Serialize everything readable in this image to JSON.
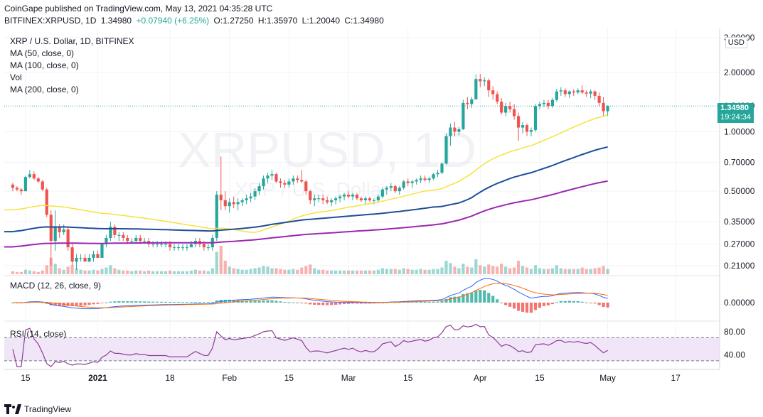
{
  "header": {
    "line1": "CoinGape published on TradingView.com, May 13, 2021 04:35:28 UTC",
    "symbol": "BITFINEX:XRPUSD, 1D",
    "price": "1.34980",
    "change": "+0.07940 (+6.25%)",
    "open": "O:1.27250",
    "high": "H:1.35970",
    "low": "L:1.20040",
    "close": "C:1.34980"
  },
  "legend": {
    "title": "XRP / U.S. Dollar, 1D, BITFINEX",
    "ma50": "MA (50, close, 0)",
    "ma100": "MA (100, close, 0)",
    "vol": "Vol",
    "ma200": "MA (200, close, 0)",
    "macd": "MACD (12, 26, close, 9)",
    "rsi": "RSI (14, close)"
  },
  "watermark": {
    "symbol": "XRPUSD, 1D",
    "name": "XRP / U.S. Dollar"
  },
  "currency_badge": "USD",
  "price_tag": {
    "price": "1.34980",
    "countdown": "19:24:34"
  },
  "footer": {
    "brand": "TradingView"
  },
  "colors": {
    "up": "#26a69a",
    "down": "#ef5350",
    "ma50": "#f5e33b",
    "ma100": "#1f4e99",
    "ma200": "#9c27b0",
    "rsi": "#8e3c96",
    "rsi_band": "#e9dcf5",
    "macd": "#2962ff",
    "signal": "#ff6d00"
  },
  "chart_data": [
    {
      "type": "candlestick",
      "title": "XRP / U.S. Dollar, 1D, BITFINEX",
      "scale": "log",
      "y_ticks": [
        "3.00000",
        "2.00000",
        "1.34980",
        "1.00000",
        "0.70000",
        "0.50000",
        "0.35000",
        "0.27000",
        "0.21000"
      ],
      "x_ticks": [
        "15",
        "2021",
        "18",
        "Feb",
        "15",
        "Mar",
        "15",
        "Apr",
        "15",
        "May",
        "17"
      ],
      "x_range": [
        "2020-12-10",
        "2021-05-25"
      ],
      "ylim": [
        0.19,
        3.2
      ],
      "grid": true,
      "last_price": 1.3498,
      "ohlc_start": "2020-12-12",
      "ohlc": [
        [
          0.54,
          0.55,
          0.5,
          0.52
        ],
        [
          0.52,
          0.53,
          0.5,
          0.51
        ],
        [
          0.51,
          0.52,
          0.48,
          0.5
        ],
        [
          0.5,
          0.6,
          0.5,
          0.59
        ],
        [
          0.59,
          0.64,
          0.58,
          0.61
        ],
        [
          0.61,
          0.63,
          0.57,
          0.58
        ],
        [
          0.58,
          0.59,
          0.55,
          0.56
        ],
        [
          0.56,
          0.57,
          0.5,
          0.51
        ],
        [
          0.51,
          0.52,
          0.37,
          0.38
        ],
        [
          0.38,
          0.4,
          0.21,
          0.28
        ],
        [
          0.28,
          0.4,
          0.25,
          0.33
        ],
        [
          0.33,
          0.34,
          0.29,
          0.31
        ],
        [
          0.31,
          0.34,
          0.3,
          0.32
        ],
        [
          0.32,
          0.33,
          0.25,
          0.26
        ],
        [
          0.26,
          0.27,
          0.21,
          0.22
        ],
        [
          0.22,
          0.24,
          0.2,
          0.23
        ],
        [
          0.23,
          0.24,
          0.22,
          0.23
        ],
        [
          0.23,
          0.24,
          0.22,
          0.22
        ],
        [
          0.22,
          0.24,
          0.22,
          0.23
        ],
        [
          0.23,
          0.25,
          0.22,
          0.24
        ],
        [
          0.24,
          0.25,
          0.23,
          0.23
        ],
        [
          0.23,
          0.27,
          0.23,
          0.27
        ],
        [
          0.27,
          0.3,
          0.26,
          0.29
        ],
        [
          0.29,
          0.35,
          0.28,
          0.33
        ],
        [
          0.33,
          0.34,
          0.29,
          0.3
        ],
        [
          0.3,
          0.31,
          0.28,
          0.3
        ],
        [
          0.3,
          0.31,
          0.28,
          0.29
        ],
        [
          0.29,
          0.3,
          0.27,
          0.28
        ],
        [
          0.28,
          0.29,
          0.27,
          0.28
        ],
        [
          0.28,
          0.3,
          0.27,
          0.29
        ],
        [
          0.29,
          0.3,
          0.27,
          0.28
        ],
        [
          0.28,
          0.29,
          0.27,
          0.28
        ],
        [
          0.28,
          0.29,
          0.26,
          0.27
        ],
        [
          0.27,
          0.28,
          0.26,
          0.27
        ],
        [
          0.27,
          0.28,
          0.26,
          0.27
        ],
        [
          0.27,
          0.28,
          0.26,
          0.27
        ],
        [
          0.27,
          0.28,
          0.26,
          0.27
        ],
        [
          0.27,
          0.28,
          0.25,
          0.26
        ],
        [
          0.26,
          0.27,
          0.25,
          0.26
        ],
        [
          0.26,
          0.27,
          0.25,
          0.26
        ],
        [
          0.26,
          0.27,
          0.25,
          0.26
        ],
        [
          0.26,
          0.27,
          0.25,
          0.26
        ],
        [
          0.26,
          0.28,
          0.26,
          0.27
        ],
        [
          0.27,
          0.29,
          0.26,
          0.28
        ],
        [
          0.28,
          0.29,
          0.26,
          0.27
        ],
        [
          0.27,
          0.28,
          0.25,
          0.26
        ],
        [
          0.26,
          0.27,
          0.25,
          0.26
        ],
        [
          0.26,
          0.3,
          0.25,
          0.29
        ],
        [
          0.29,
          0.5,
          0.28,
          0.48
        ],
        [
          0.48,
          0.75,
          0.4,
          0.45
        ],
        [
          0.45,
          0.5,
          0.4,
          0.42
        ],
        [
          0.42,
          0.46,
          0.39,
          0.44
        ],
        [
          0.44,
          0.47,
          0.41,
          0.43
        ],
        [
          0.43,
          0.46,
          0.4,
          0.44
        ],
        [
          0.44,
          0.46,
          0.42,
          0.45
        ],
        [
          0.45,
          0.48,
          0.43,
          0.46
        ],
        [
          0.46,
          0.49,
          0.44,
          0.47
        ],
        [
          0.47,
          0.52,
          0.45,
          0.5
        ],
        [
          0.5,
          0.55,
          0.48,
          0.53
        ],
        [
          0.53,
          0.6,
          0.51,
          0.58
        ],
        [
          0.58,
          0.62,
          0.55,
          0.6
        ],
        [
          0.6,
          0.64,
          0.57,
          0.61
        ],
        [
          0.61,
          0.62,
          0.55,
          0.56
        ],
        [
          0.56,
          0.58,
          0.52,
          0.55
        ],
        [
          0.55,
          0.57,
          0.52,
          0.54
        ],
        [
          0.54,
          0.58,
          0.52,
          0.56
        ],
        [
          0.56,
          0.6,
          0.54,
          0.58
        ],
        [
          0.58,
          0.6,
          0.55,
          0.57
        ],
        [
          0.57,
          0.64,
          0.55,
          0.56
        ],
        [
          0.56,
          0.57,
          0.48,
          0.5
        ],
        [
          0.5,
          0.51,
          0.43,
          0.45
        ],
        [
          0.45,
          0.48,
          0.42,
          0.46
        ],
        [
          0.46,
          0.48,
          0.44,
          0.46
        ],
        [
          0.46,
          0.48,
          0.43,
          0.45
        ],
        [
          0.45,
          0.47,
          0.43,
          0.44
        ],
        [
          0.44,
          0.46,
          0.42,
          0.45
        ],
        [
          0.45,
          0.47,
          0.43,
          0.46
        ],
        [
          0.46,
          0.48,
          0.44,
          0.47
        ],
        [
          0.47,
          0.49,
          0.45,
          0.48
        ],
        [
          0.48,
          0.5,
          0.46,
          0.47
        ],
        [
          0.47,
          0.49,
          0.45,
          0.48
        ],
        [
          0.48,
          0.49,
          0.45,
          0.46
        ],
        [
          0.46,
          0.47,
          0.44,
          0.45
        ],
        [
          0.45,
          0.47,
          0.43,
          0.46
        ],
        [
          0.46,
          0.47,
          0.44,
          0.45
        ],
        [
          0.45,
          0.46,
          0.43,
          0.45
        ],
        [
          0.45,
          0.48,
          0.44,
          0.47
        ],
        [
          0.47,
          0.52,
          0.46,
          0.51
        ],
        [
          0.51,
          0.53,
          0.48,
          0.52
        ],
        [
          0.52,
          0.55,
          0.5,
          0.53
        ],
        [
          0.53,
          0.54,
          0.49,
          0.5
        ],
        [
          0.5,
          0.53,
          0.48,
          0.52
        ],
        [
          0.52,
          0.57,
          0.51,
          0.56
        ],
        [
          0.56,
          0.58,
          0.53,
          0.55
        ],
        [
          0.55,
          0.57,
          0.52,
          0.56
        ],
        [
          0.56,
          0.58,
          0.54,
          0.57
        ],
        [
          0.57,
          0.6,
          0.55,
          0.58
        ],
        [
          0.58,
          0.6,
          0.56,
          0.57
        ],
        [
          0.57,
          0.59,
          0.55,
          0.58
        ],
        [
          0.58,
          0.62,
          0.57,
          0.61
        ],
        [
          0.61,
          0.64,
          0.59,
          0.62
        ],
        [
          0.62,
          0.7,
          0.61,
          0.69
        ],
        [
          0.69,
          0.98,
          0.68,
          0.95
        ],
        [
          0.95,
          1.1,
          0.85,
          1.05
        ],
        [
          1.05,
          1.12,
          0.95,
          1.0
        ],
        [
          1.0,
          1.06,
          0.96,
          1.03
        ],
        [
          1.03,
          1.45,
          1.02,
          1.4
        ],
        [
          1.4,
          1.5,
          1.3,
          1.38
        ],
        [
          1.38,
          1.5,
          1.32,
          1.46
        ],
        [
          1.46,
          1.95,
          1.45,
          1.85
        ],
        [
          1.85,
          1.96,
          1.68,
          1.8
        ],
        [
          1.8,
          1.88,
          1.7,
          1.82
        ],
        [
          1.82,
          1.86,
          1.5,
          1.62
        ],
        [
          1.62,
          1.7,
          1.45,
          1.55
        ],
        [
          1.55,
          1.6,
          1.38,
          1.42
        ],
        [
          1.42,
          1.48,
          1.22,
          1.25
        ],
        [
          1.25,
          1.4,
          1.2,
          1.35
        ],
        [
          1.35,
          1.42,
          1.25,
          1.3
        ],
        [
          1.3,
          1.38,
          1.15,
          1.2
        ],
        [
          1.2,
          1.25,
          0.9,
          1.05
        ],
        [
          1.05,
          1.12,
          0.98,
          1.08
        ],
        [
          1.08,
          1.1,
          0.95,
          1.0
        ],
        [
          1.0,
          1.05,
          0.95,
          1.02
        ],
        [
          1.02,
          1.38,
          1.0,
          1.35
        ],
        [
          1.35,
          1.42,
          1.3,
          1.38
        ],
        [
          1.38,
          1.45,
          1.33,
          1.4
        ],
        [
          1.4,
          1.45,
          1.3,
          1.35
        ],
        [
          1.35,
          1.48,
          1.32,
          1.45
        ],
        [
          1.45,
          1.65,
          1.42,
          1.6
        ],
        [
          1.6,
          1.68,
          1.52,
          1.62
        ],
        [
          1.62,
          1.66,
          1.5,
          1.55
        ],
        [
          1.55,
          1.62,
          1.48,
          1.6
        ],
        [
          1.6,
          1.64,
          1.52,
          1.58
        ],
        [
          1.58,
          1.66,
          1.55,
          1.62
        ],
        [
          1.62,
          1.72,
          1.55,
          1.58
        ],
        [
          1.58,
          1.62,
          1.5,
          1.56
        ],
        [
          1.56,
          1.64,
          1.48,
          1.6
        ],
        [
          1.6,
          1.62,
          1.45,
          1.52
        ],
        [
          1.52,
          1.58,
          1.35,
          1.4
        ],
        [
          1.4,
          1.5,
          1.2,
          1.27
        ],
        [
          1.27,
          1.36,
          1.2,
          1.35
        ]
      ],
      "volume": [
        4,
        3,
        3,
        6,
        5,
        4,
        3,
        5,
        12,
        22,
        14,
        8,
        6,
        10,
        12,
        8,
        6,
        5,
        5,
        6,
        5,
        7,
        9,
        12,
        8,
        6,
        5,
        5,
        4,
        5,
        5,
        4,
        5,
        4,
        4,
        4,
        4,
        5,
        4,
        4,
        4,
        4,
        5,
        6,
        5,
        5,
        4,
        8,
        30,
        38,
        18,
        10,
        8,
        7,
        6,
        6,
        7,
        8,
        9,
        11,
        10,
        8,
        8,
        7,
        6,
        6,
        7,
        6,
        9,
        11,
        13,
        8,
        6,
        6,
        5,
        5,
        5,
        5,
        5,
        5,
        5,
        5,
        5,
        5,
        5,
        5,
        6,
        8,
        7,
        7,
        7,
        6,
        8,
        7,
        6,
        6,
        7,
        6,
        6,
        7,
        7,
        9,
        18,
        15,
        10,
        8,
        14,
        10,
        9,
        20,
        12,
        10,
        13,
        11,
        10,
        14,
        10,
        8,
        9,
        18,
        11,
        9,
        7,
        12,
        8,
        7,
        7,
        8,
        12,
        8,
        7,
        7,
        7,
        7,
        9,
        7,
        7,
        8,
        9,
        11,
        7
      ],
      "series": [
        {
          "name": "MA (50, close, 0)",
          "values_start": 0.4,
          "values_end": 1.24
        },
        {
          "name": "MA (100, close, 0)",
          "values_start": 0.31,
          "values_end": 0.84
        },
        {
          "name": "MA (200, close, 0)",
          "values_start": 0.26,
          "values_end": 0.62
        }
      ]
    },
    {
      "type": "line",
      "title": "MACD (12, 26, close, 9)",
      "y_ticks": [
        "0.00000"
      ]
    },
    {
      "type": "line",
      "title": "RSI (14, close)",
      "y_ticks": [
        "80.00",
        "40.00"
      ],
      "ylim": [
        20,
        95
      ],
      "band": [
        30,
        70
      ]
    }
  ]
}
